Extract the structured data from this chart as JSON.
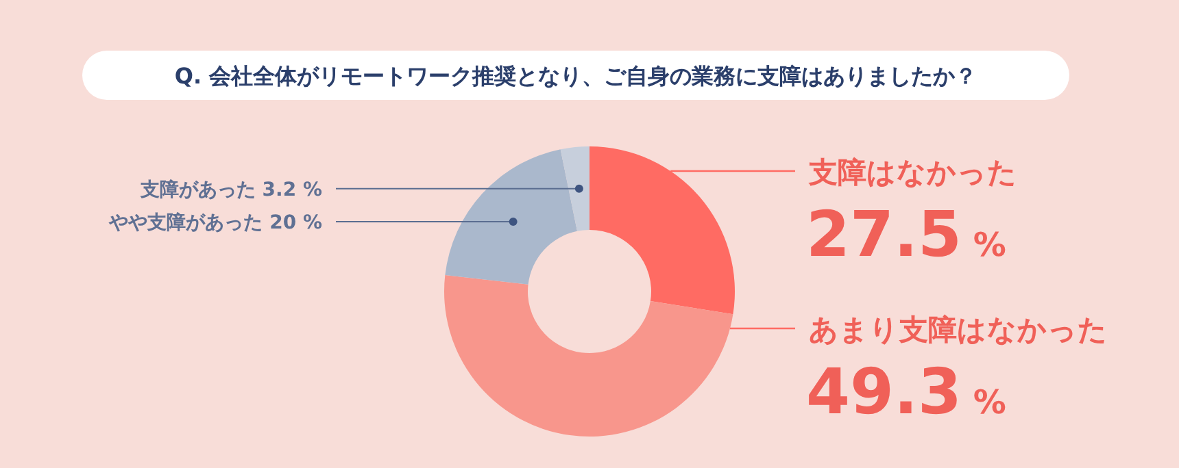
{
  "chart_data": {
    "type": "donut",
    "title": "Q. 会社全体がリモートワーク推奨となり、ご自身の業務に支障はありましたか？",
    "categories": [
      "支障はなかった",
      "あまり支障はなかった",
      "やや支障があった",
      "支障があった"
    ],
    "values": [
      27.5,
      49.3,
      20,
      3.2
    ],
    "colors": [
      "#ff6b63",
      "#f8968c",
      "#aab8cc",
      "#c7cfdc"
    ],
    "value_labels": [
      "27.5 %",
      "49.3 %",
      "20 %",
      "3.2 %"
    ]
  }
}
